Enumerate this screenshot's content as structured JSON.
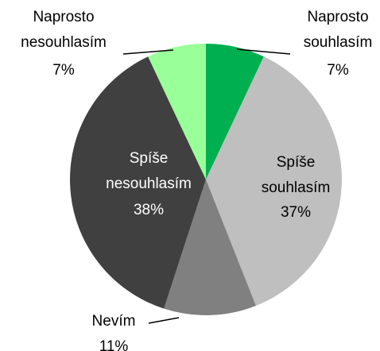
{
  "chart_data": {
    "type": "pie",
    "categories": [
      "Naprosto souhlasím",
      "Spíše souhlasím",
      "Nevím",
      "Spíše nesouhlasím",
      "Naprosto nesouhlasím"
    ],
    "values": [
      7,
      37,
      11,
      38,
      7
    ],
    "value_labels": [
      "7%",
      "37%",
      "11%",
      "38%",
      "7%"
    ],
    "colors": [
      "#00b050",
      "#bfbfbf",
      "#808080",
      "#404040",
      "#99ff99"
    ]
  }
}
